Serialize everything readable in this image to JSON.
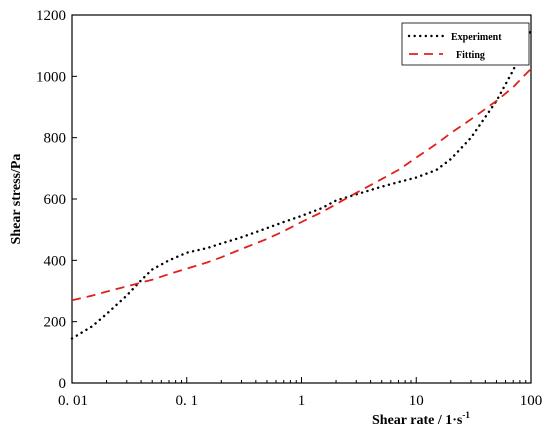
{
  "chart_data": {
    "type": "line",
    "x_scale": "log",
    "xlabel": "Shear rate / 1·s",
    "xlabel_superscript": "-1",
    "ylabel": "Shear stress/Pa",
    "xlim": [
      0.01,
      100
    ],
    "ylim": [
      0,
      1200
    ],
    "x_ticks": [
      0.01,
      0.1,
      1,
      10,
      100
    ],
    "x_tick_labels": [
      "0. 01",
      "0. 1",
      "1",
      "10",
      "100"
    ],
    "y_ticks": [
      0,
      200,
      400,
      600,
      800,
      1000,
      1200
    ],
    "y_tick_labels": [
      "0",
      "200",
      "400",
      "600",
      "800",
      "1000",
      "1200"
    ],
    "grid": false,
    "legend_position": "top-right",
    "series": [
      {
        "name": "Experiment",
        "color": "#000000",
        "style": "dotted",
        "x": [
          0.01,
          0.015,
          0.02,
          0.03,
          0.04,
          0.05,
          0.07,
          0.1,
          0.15,
          0.2,
          0.3,
          0.5,
          0.7,
          1,
          1.5,
          2,
          3,
          5,
          7,
          10,
          15,
          20,
          30,
          50,
          70,
          100
        ],
        "y": [
          145,
          185,
          225,
          285,
          335,
          370,
          400,
          425,
          440,
          455,
          475,
          505,
          525,
          545,
          570,
          595,
          615,
          640,
          655,
          670,
          695,
          730,
          800,
          920,
          1020,
          1150
        ]
      },
      {
        "name": "Fitting",
        "color": "#e0201c",
        "style": "dashed",
        "x": [
          0.01,
          0.015,
          0.02,
          0.03,
          0.05,
          0.07,
          0.1,
          0.15,
          0.2,
          0.3,
          0.5,
          0.7,
          1,
          1.5,
          2,
          3,
          5,
          7,
          10,
          15,
          20,
          30,
          50,
          70,
          100
        ],
        "y": [
          270,
          285,
          298,
          315,
          337,
          355,
          373,
          393,
          410,
          437,
          470,
          495,
          525,
          557,
          583,
          620,
          665,
          695,
          735,
          780,
          815,
          860,
          920,
          965,
          1025
        ]
      }
    ]
  }
}
